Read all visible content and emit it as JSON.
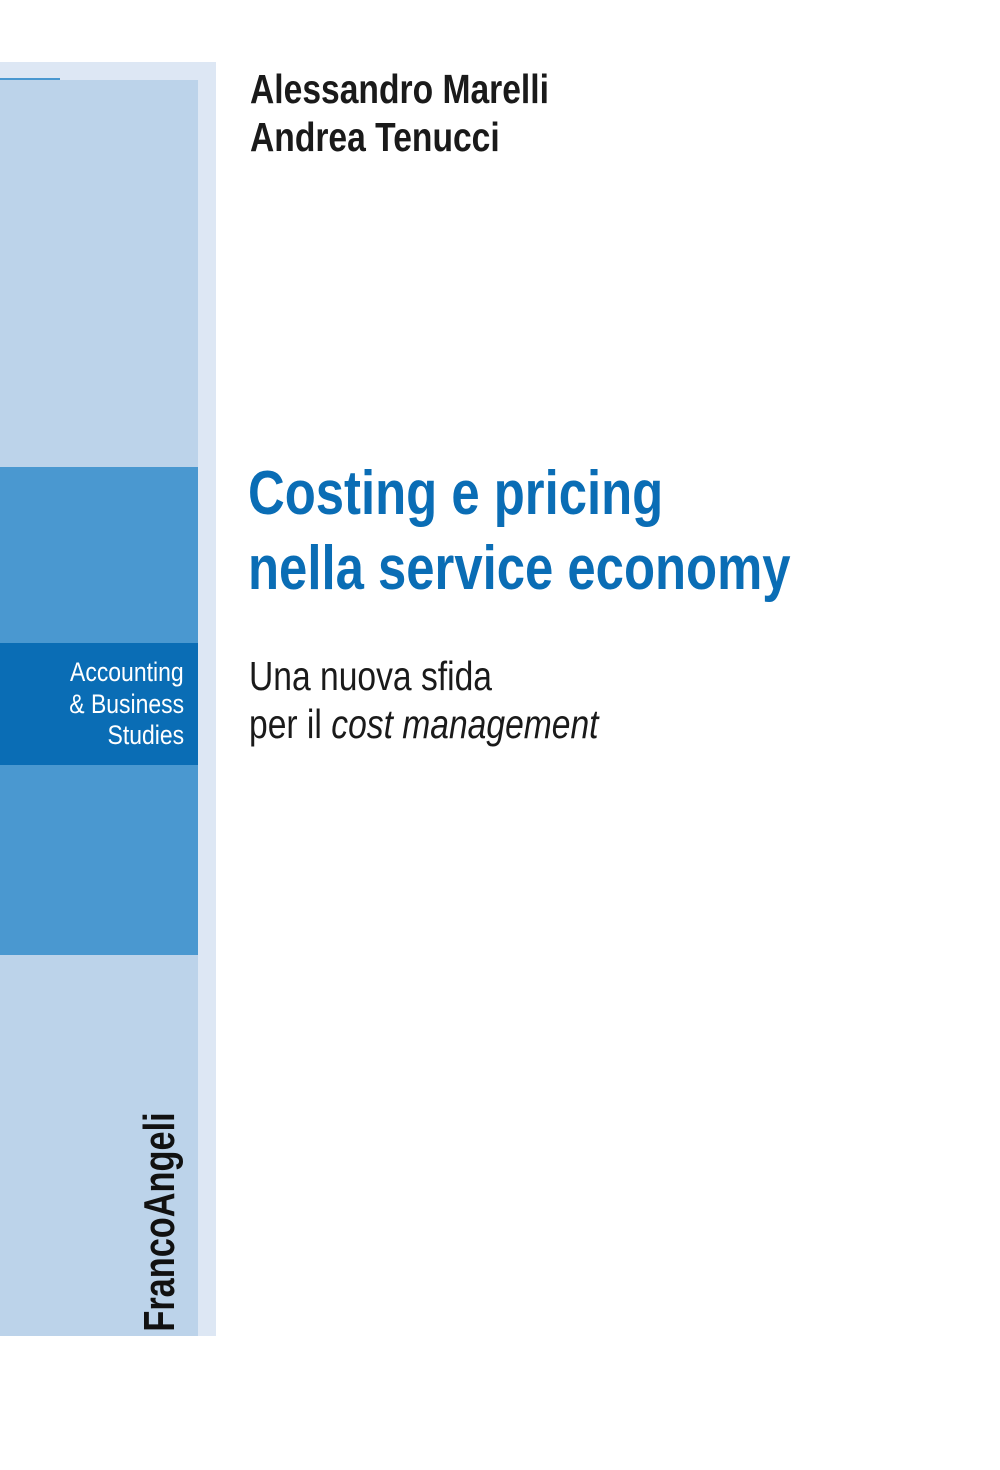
{
  "authors": [
    "Alessandro Marelli",
    "Andrea Tenucci"
  ],
  "title": [
    "Costing e pricing",
    "nella service economy"
  ],
  "subtitle": {
    "line1": "Una nuova sfida",
    "line2_start": "per il",
    "line2_italic": "cost management"
  },
  "series": [
    "Accounting",
    "& Business",
    "Studies"
  ],
  "publisher": "FrancoAngeli"
}
